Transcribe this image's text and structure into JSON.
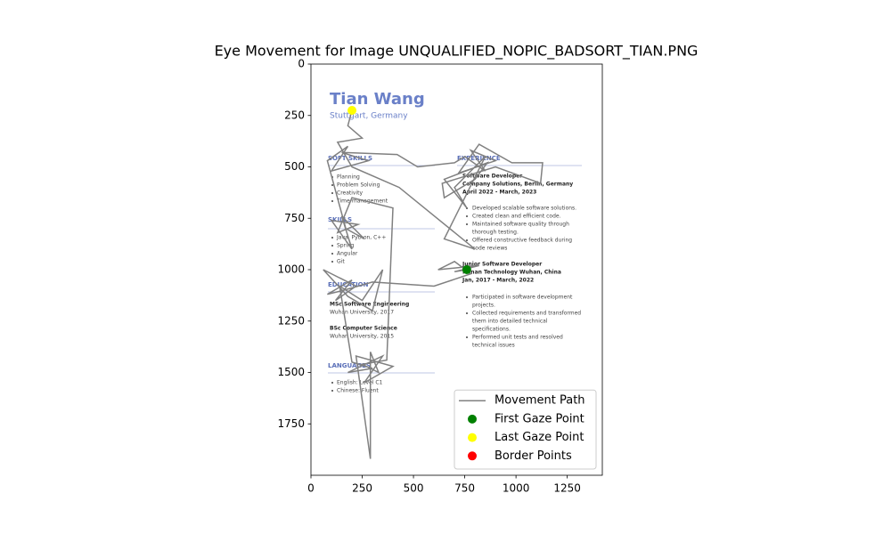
{
  "chart_data": {
    "type": "line",
    "title": "Eye Movement for Image UNQUALIFIED_NOPIC_BADSORT_TIAN.PNG",
    "xlim": [
      0,
      1421
    ],
    "ylim": [
      2000,
      0
    ],
    "xticks": [
      0,
      250,
      500,
      750,
      1000,
      1250
    ],
    "yticks": [
      0,
      250,
      500,
      750,
      1000,
      1250,
      1500,
      1750
    ],
    "legend": "lower right",
    "series": [
      {
        "name": "Movement Path",
        "color": "#808080",
        "kind": "line",
        "x": [
          760,
          700,
          820,
          620,
          700,
          780,
          600,
          300,
          160,
          80,
          200,
          120,
          220,
          60,
          180,
          300,
          350,
          250,
          140,
          200,
          300,
          180,
          350,
          260,
          400,
          220,
          290,
          290,
          330,
          250,
          370,
          400,
          200,
          130,
          230,
          100,
          200,
          150,
          260,
          170,
          80,
          180,
          100,
          280,
          150,
          420,
          520,
          700,
          750,
          850,
          780,
          900,
          720,
          820,
          980,
          1130,
          1120,
          900,
          640,
          650,
          800,
          860,
          650,
          760,
          700,
          850,
          650,
          800,
          430,
          200,
          130,
          250,
          180,
          200
        ],
        "y": [
          1000,
          1010,
          980,
          1000,
          960,
          1020,
          1080,
          1060,
          1100,
          1120,
          1050,
          1150,
          1080,
          1000,
          1130,
          1200,
          1000,
          1150,
          1080,
          1450,
          1480,
          1500,
          1420,
          1550,
          1470,
          1420,
          1920,
          1400,
          1500,
          1460,
          1440,
          700,
          650,
          820,
          780,
          760,
          900,
          740,
          850,
          800,
          470,
          400,
          520,
          470,
          430,
          440,
          500,
          480,
          450,
          520,
          420,
          470,
          530,
          390,
          480,
          480,
          580,
          500,
          580,
          650,
          560,
          480,
          560,
          700,
          600,
          450,
          850,
          900,
          600,
          500,
          380,
          360,
          300,
          225
        ]
      },
      {
        "name": "First Gaze Point",
        "color": "#008000",
        "kind": "point",
        "x": [
          760
        ],
        "y": [
          1000
        ]
      },
      {
        "name": "Last Gaze Point",
        "color": "#ffff00",
        "kind": "point",
        "x": [
          200
        ],
        "y": [
          225
        ]
      },
      {
        "name": "Border Points",
        "color": "#ff0000",
        "kind": "point",
        "x": [],
        "y": []
      }
    ],
    "image_text": [
      "Tian Wang",
      "Stuttgart, Germany",
      "SOFT SKILLS",
      "Planning",
      "Problem Solving",
      "Creativity",
      "Time-management",
      "SKILLS",
      "Java, Python, C++",
      "Spring",
      "Angular",
      "Git",
      "EDUCATION",
      "MSc Software Engineering",
      "Wuhan University, 2017",
      "BSc Computer Science",
      "Wuhan University, 2015",
      "LANGUAGES",
      "English: Level C1",
      "Chinese: Fluent",
      "EXPERIENCE",
      "Software Developer",
      "Company Solutions, Berlin, Germany",
      "April 2022 - March, 2023",
      "Developed scalable software solutions.",
      "Created clean and efficient code.",
      "Maintained software quality through",
      "thorough testing.",
      "Offered constructive feedback during",
      "code reviews",
      "Junior Software Developer",
      "Hunan Technology Wuhan, China",
      "Jan, 2017 - March, 2022",
      "Participated in software development",
      "projects.",
      "Collected requirements and transformed",
      "them into detailed technical",
      "specifications.",
      "Performed unit tests and resolved",
      "technical issues"
    ]
  }
}
